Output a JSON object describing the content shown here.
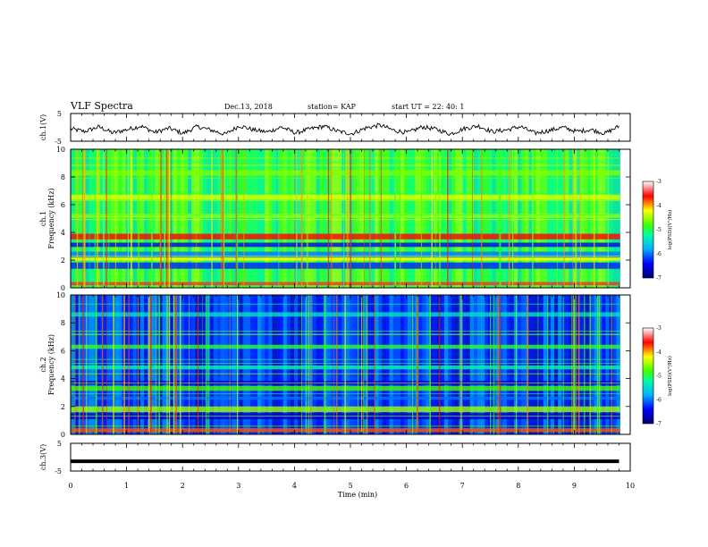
{
  "header": {
    "title": "VLF Spectra",
    "date": "Dec.13, 2018",
    "station": "station= KAP",
    "start": "start  UT  =   22: 40: 1"
  },
  "chart_data": [
    {
      "type": "line",
      "panel": "ch1-waveform",
      "ylabel": "ch.1(V)",
      "ylim": [
        -5,
        5
      ],
      "yticks": [
        "5",
        "-5"
      ],
      "x_range_min": [
        0,
        9.8
      ],
      "note_values": "continuous noisy waveform fluctuating roughly between -3 and 1 V",
      "values_approx": [
        -0.5,
        -1.5,
        0.2,
        -2.0,
        -0.8,
        0.5,
        -1.8,
        -0.3,
        -2.2,
        0.3,
        -1.0,
        -2.5,
        0.6,
        -0.9,
        -1.7,
        0.1,
        -2.0,
        -0.6,
        0.4,
        -1.4,
        -2.3,
        -0.2,
        0.8,
        -1.1,
        -1.9,
        0.2,
        -0.7,
        -2.4,
        -0.4,
        0.5,
        -1.6,
        -0.9,
        0.3,
        -2.1,
        -1.2,
        0.0,
        -1.5,
        -0.8,
        -2.2,
        0.4
      ]
    },
    {
      "type": "heatmap",
      "panel": "ch1-spectrogram",
      "ylabel": "ch.1",
      "ylabel2": "Frequency (kHz)",
      "ylim": [
        0,
        10
      ],
      "yticks": [
        "0",
        "2",
        "4",
        "6",
        "8",
        "10"
      ],
      "colorbar_label": "log(PSD)(V²/Hz)",
      "colorbar_ticks": [
        "-3",
        "-4",
        "-5",
        "-6",
        "-7"
      ],
      "colorbar_range": [
        -7,
        -3
      ],
      "dominant_level": -5.0,
      "bands_khz_level": [
        [
          0.3,
          -3.5
        ],
        [
          1.6,
          -6.3
        ],
        [
          2.1,
          -4.2
        ],
        [
          2.4,
          -6.0
        ],
        [
          3.1,
          -6.5
        ],
        [
          3.7,
          -3.6
        ],
        [
          5.2,
          -4.5
        ],
        [
          6.5,
          -4.3
        ],
        [
          8.3,
          -4.6
        ]
      ]
    },
    {
      "type": "heatmap",
      "panel": "ch2-spectrogram",
      "ylabel": "ch.2",
      "ylabel2": "Frequency (kHz)",
      "ylim": [
        0,
        10
      ],
      "yticks": [
        "0",
        "2",
        "4",
        "6",
        "8",
        "10"
      ],
      "colorbar_label": "log(PSD)(V²/Hz)",
      "colorbar_ticks": [
        "-3",
        "-4",
        "-5",
        "-6",
        "-7"
      ],
      "colorbar_range": [
        -7,
        -3
      ],
      "dominant_level": -6.2,
      "bands_khz_level": [
        [
          0.3,
          -3.8
        ],
        [
          1.3,
          -6.6
        ],
        [
          1.8,
          -4.5
        ],
        [
          2.6,
          -6.0
        ],
        [
          3.3,
          -4.8
        ],
        [
          3.7,
          -6.6
        ],
        [
          4.8,
          -5.2
        ],
        [
          6.3,
          -4.9
        ],
        [
          8.6,
          -5.4
        ]
      ]
    },
    {
      "type": "line",
      "panel": "ch3-waveform",
      "ylabel": "ch.3(V)",
      "ylim": [
        -5,
        5
      ],
      "yticks": [
        "5",
        "-5"
      ],
      "x_range_min": [
        0,
        9.8
      ],
      "values_approx": [
        -1.5,
        -1.5
      ]
    }
  ],
  "x_axis": {
    "label": "Time  (min)",
    "ticks": [
      "0",
      "1",
      "2",
      "3",
      "4",
      "5",
      "6",
      "7",
      "8",
      "9",
      "10"
    ],
    "range": [
      0,
      10
    ]
  }
}
